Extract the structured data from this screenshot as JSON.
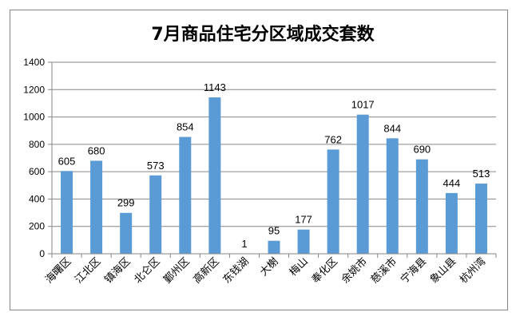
{
  "chart_data": {
    "type": "bar",
    "title": "7月商品住宅分区域成交套数",
    "xlabel": "",
    "ylabel": "",
    "categories": [
      "海曙区",
      "江北区",
      "镇海区",
      "北仑区",
      "鄞州区",
      "高新区",
      "东钱湖",
      "大榭",
      "梅山",
      "奉化区",
      "余姚市",
      "慈溪市",
      "宁海县",
      "象山县",
      "杭州湾"
    ],
    "values": [
      605,
      680,
      299,
      573,
      854,
      1143,
      1,
      95,
      177,
      762,
      1017,
      844,
      690,
      444,
      513
    ],
    "yticks": [
      "0",
      "200",
      "400",
      "600",
      "800",
      "1000",
      "1200",
      "1400"
    ],
    "ylim": [
      0,
      1400
    ],
    "grid": true,
    "legend": "none",
    "colors": {
      "bar": "#5b9bd5",
      "grid": "#868686",
      "axis": "#868686"
    }
  }
}
